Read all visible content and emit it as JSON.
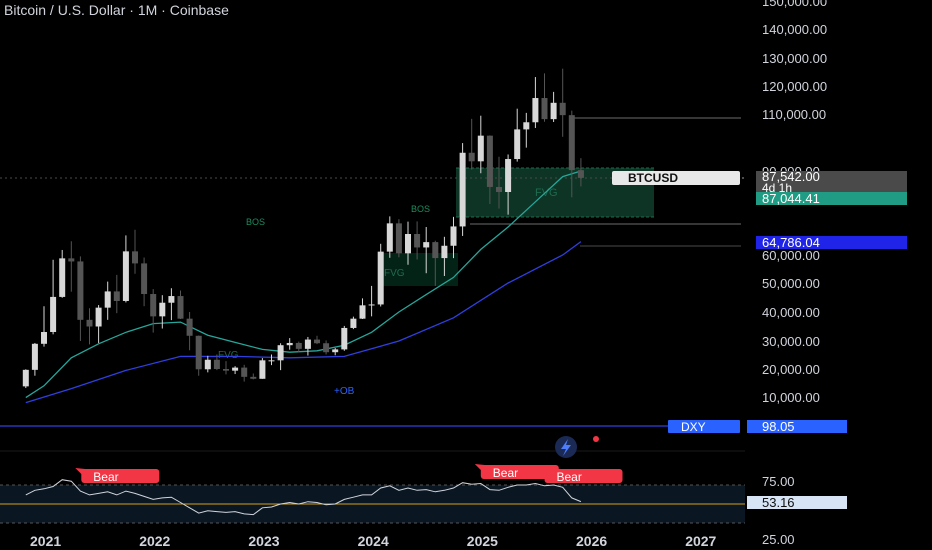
{
  "header": {
    "title": "Bitcoin / U.S. Dollar · 1M · Coinbase"
  },
  "annotations": {
    "bos_left": "BOS",
    "bos_right": "BOS",
    "fvg_left": "FVG",
    "fvg_right": "FVG",
    "fvg_2022": "FVG",
    "ob": "+OB"
  },
  "price_scale": {
    "ticks": [
      {
        "label": "150,000.00",
        "value": 150000
      },
      {
        "label": "140,000.00",
        "value": 140000
      },
      {
        "label": "130,000.00",
        "value": 130000
      },
      {
        "label": "120,000.00",
        "value": 120000
      },
      {
        "label": "110,000.00",
        "value": 110000
      },
      {
        "label": "90,000.00",
        "value": 90000
      },
      {
        "label": "60,000.00",
        "value": 60000
      },
      {
        "label": "50,000.00",
        "value": 50000
      },
      {
        "label": "40,000.00",
        "value": 40000
      },
      {
        "label": "30,000.00",
        "value": 30000
      },
      {
        "label": "20,000.00",
        "value": 20000
      },
      {
        "label": "10,000.00",
        "value": 10000
      }
    ],
    "current_symbol": "BTCUSD",
    "current_price": "87,542.00",
    "countdown": "4d 1h",
    "line_price_label": "87,044.41",
    "ma_price_label": "64,786.04",
    "dxy_symbol": "DXY",
    "dxy_value": "98.05"
  },
  "rsi_scale": {
    "ticks": [
      {
        "label": "75.00",
        "value": 75
      },
      {
        "label": "25.00",
        "value": 25
      }
    ],
    "current": "53.16",
    "bear_labels": [
      "Bear",
      "Bear",
      "Bear"
    ]
  },
  "time_axis": {
    "labels": [
      "2021",
      "2022",
      "2023",
      "2024",
      "2025",
      "2026",
      "2027"
    ]
  },
  "colors": {
    "background": "#000000",
    "bull_candle": "#d8d8d8",
    "bear_candle": "#555555",
    "ma_fast": "#26a69a",
    "ma_slow": "#2f3fe0",
    "fvg_box": "#0f3d2a",
    "price_label_green": "#1f9c83",
    "price_label_blue": "#1f24e8",
    "dxy_blue": "#2962ff",
    "bear_red": "#f23645",
    "rsi_line": "#d1d4dc",
    "rsi_mid": "#d4a017"
  },
  "chart_data": {
    "type": "candlestick",
    "title": "Bitcoin / U.S. Dollar · 1M · Coinbase",
    "interval": "1M",
    "price_axis": "right",
    "series": [
      {
        "name": "BTCUSD",
        "candles": [
          {
            "t": "2020-11",
            "o": 13800,
            "h": 19900,
            "l": 13200,
            "c": 19700
          },
          {
            "t": "2020-12",
            "o": 19700,
            "h": 29300,
            "l": 17600,
            "c": 29000
          },
          {
            "t": "2021-01",
            "o": 29000,
            "h": 42000,
            "l": 28000,
            "c": 33100
          },
          {
            "t": "2021-02",
            "o": 33100,
            "h": 58300,
            "l": 32300,
            "c": 45200
          },
          {
            "t": "2021-03",
            "o": 45200,
            "h": 61800,
            "l": 44900,
            "c": 58800
          },
          {
            "t": "2021-04",
            "o": 58800,
            "h": 64900,
            "l": 47000,
            "c": 57700
          },
          {
            "t": "2021-05",
            "o": 57700,
            "h": 59500,
            "l": 30000,
            "c": 37300
          },
          {
            "t": "2021-06",
            "o": 37300,
            "h": 41300,
            "l": 28800,
            "c": 35000
          },
          {
            "t": "2021-07",
            "o": 35000,
            "h": 42400,
            "l": 29300,
            "c": 41500
          },
          {
            "t": "2021-08",
            "o": 41500,
            "h": 50500,
            "l": 37300,
            "c": 47100
          },
          {
            "t": "2021-09",
            "o": 47100,
            "h": 52900,
            "l": 39600,
            "c": 43800
          },
          {
            "t": "2021-10",
            "o": 43800,
            "h": 67000,
            "l": 43300,
            "c": 61300
          },
          {
            "t": "2021-11",
            "o": 61300,
            "h": 69000,
            "l": 53300,
            "c": 57000
          },
          {
            "t": "2021-12",
            "o": 57000,
            "h": 59100,
            "l": 42000,
            "c": 46200
          },
          {
            "t": "2022-01",
            "o": 46200,
            "h": 47900,
            "l": 32900,
            "c": 38500
          },
          {
            "t": "2022-02",
            "o": 38500,
            "h": 45800,
            "l": 34300,
            "c": 43200
          },
          {
            "t": "2022-03",
            "o": 43200,
            "h": 48200,
            "l": 37200,
            "c": 45500
          },
          {
            "t": "2022-04",
            "o": 45500,
            "h": 47400,
            "l": 37600,
            "c": 37700
          },
          {
            "t": "2022-05",
            "o": 37700,
            "h": 40000,
            "l": 26700,
            "c": 31800
          },
          {
            "t": "2022-06",
            "o": 31800,
            "h": 31900,
            "l": 17600,
            "c": 19900
          },
          {
            "t": "2022-07",
            "o": 19900,
            "h": 24700,
            "l": 18800,
            "c": 23300
          },
          {
            "t": "2022-08",
            "o": 23300,
            "h": 25200,
            "l": 19600,
            "c": 20000
          },
          {
            "t": "2022-09",
            "o": 20000,
            "h": 22800,
            "l": 18100,
            "c": 19400
          },
          {
            "t": "2022-10",
            "o": 19400,
            "h": 21000,
            "l": 18200,
            "c": 20500
          },
          {
            "t": "2022-11",
            "o": 20500,
            "h": 21500,
            "l": 15500,
            "c": 17200
          },
          {
            "t": "2022-12",
            "o": 17200,
            "h": 18400,
            "l": 16300,
            "c": 16500
          },
          {
            "t": "2023-01",
            "o": 16500,
            "h": 23900,
            "l": 16500,
            "c": 23100
          },
          {
            "t": "2023-02",
            "o": 23100,
            "h": 25200,
            "l": 21400,
            "c": 23100
          },
          {
            "t": "2023-03",
            "o": 23100,
            "h": 29200,
            "l": 19600,
            "c": 28500
          },
          {
            "t": "2023-04",
            "o": 28500,
            "h": 31000,
            "l": 26900,
            "c": 29300
          },
          {
            "t": "2023-05",
            "o": 29300,
            "h": 29800,
            "l": 25900,
            "c": 27200
          },
          {
            "t": "2023-06",
            "o": 27200,
            "h": 31400,
            "l": 24800,
            "c": 30500
          },
          {
            "t": "2023-07",
            "o": 30500,
            "h": 31800,
            "l": 28900,
            "c": 29200
          },
          {
            "t": "2023-08",
            "o": 29200,
            "h": 30200,
            "l": 25200,
            "c": 26000
          },
          {
            "t": "2023-09",
            "o": 26000,
            "h": 27500,
            "l": 24900,
            "c": 27000
          },
          {
            "t": "2023-10",
            "o": 27000,
            "h": 35200,
            "l": 26500,
            "c": 34500
          },
          {
            "t": "2023-11",
            "o": 34500,
            "h": 38400,
            "l": 34100,
            "c": 37700
          },
          {
            "t": "2023-12",
            "o": 37700,
            "h": 44700,
            "l": 37600,
            "c": 42300
          },
          {
            "t": "2024-01",
            "o": 42300,
            "h": 49000,
            "l": 38500,
            "c": 42600
          },
          {
            "t": "2024-02",
            "o": 42600,
            "h": 64000,
            "l": 41900,
            "c": 61200
          },
          {
            "t": "2024-03",
            "o": 61200,
            "h": 73800,
            "l": 59000,
            "c": 71300
          },
          {
            "t": "2024-04",
            "o": 71300,
            "h": 72800,
            "l": 59200,
            "c": 60600
          },
          {
            "t": "2024-05",
            "o": 60600,
            "h": 71900,
            "l": 56500,
            "c": 67500
          },
          {
            "t": "2024-06",
            "o": 67500,
            "h": 72000,
            "l": 58400,
            "c": 62700
          },
          {
            "t": "2024-07",
            "o": 62700,
            "h": 70000,
            "l": 53500,
            "c": 64600
          },
          {
            "t": "2024-08",
            "o": 64600,
            "h": 65100,
            "l": 49000,
            "c": 58900
          },
          {
            "t": "2024-09",
            "o": 58900,
            "h": 66500,
            "l": 52500,
            "c": 63300
          },
          {
            "t": "2024-10",
            "o": 63300,
            "h": 73600,
            "l": 58900,
            "c": 70200
          },
          {
            "t": "2024-11",
            "o": 70200,
            "h": 99800,
            "l": 66800,
            "c": 96400
          },
          {
            "t": "2024-12",
            "o": 96400,
            "h": 108300,
            "l": 90500,
            "c": 93400
          },
          {
            "t": "2025-01",
            "o": 93400,
            "h": 109400,
            "l": 89200,
            "c": 102400
          },
          {
            "t": "2025-02",
            "o": 102400,
            "h": 102500,
            "l": 78200,
            "c": 84300
          },
          {
            "t": "2025-03",
            "o": 84300,
            "h": 95000,
            "l": 76600,
            "c": 82500
          },
          {
            "t": "2025-04",
            "o": 82500,
            "h": 95800,
            "l": 74400,
            "c": 94200
          },
          {
            "t": "2025-05",
            "o": 94200,
            "h": 111900,
            "l": 93300,
            "c": 104600
          },
          {
            "t": "2025-06",
            "o": 104600,
            "h": 110400,
            "l": 98200,
            "c": 107100
          },
          {
            "t": "2025-07",
            "o": 107100,
            "h": 123200,
            "l": 105100,
            "c": 115700
          },
          {
            "t": "2025-08",
            "o": 115700,
            "h": 124500,
            "l": 107300,
            "c": 108200
          },
          {
            "t": "2025-09",
            "o": 108200,
            "h": 117900,
            "l": 107200,
            "c": 114000
          },
          {
            "t": "2025-10",
            "o": 114000,
            "h": 126200,
            "l": 102000,
            "c": 109600
          },
          {
            "t": "2025-11",
            "o": 109600,
            "h": 111200,
            "l": 80600,
            "c": 90300
          },
          {
            "t": "2025-12",
            "o": 90300,
            "h": 94500,
            "l": 84500,
            "c": 87542
          }
        ]
      },
      {
        "name": "MA fast",
        "points": [
          [
            "2020-11",
            9800
          ],
          [
            "2021-01",
            14000
          ],
          [
            "2021-04",
            24000
          ],
          [
            "2021-07",
            29000
          ],
          [
            "2021-10",
            33000
          ],
          [
            "2022-01",
            36000
          ],
          [
            "2022-04",
            36500
          ],
          [
            "2022-07",
            32000
          ],
          [
            "2022-10",
            29500
          ],
          [
            "2023-01",
            27000
          ],
          [
            "2023-04",
            26000
          ],
          [
            "2023-07",
            26500
          ],
          [
            "2023-10",
            28500
          ],
          [
            "2024-01",
            33000
          ],
          [
            "2024-04",
            40000
          ],
          [
            "2024-07",
            46000
          ],
          [
            "2024-10",
            52000
          ],
          [
            "2025-01",
            62000
          ],
          [
            "2025-04",
            70000
          ],
          [
            "2025-07",
            79000
          ],
          [
            "2025-10",
            88000
          ],
          [
            "2025-12",
            90000
          ]
        ]
      },
      {
        "name": "MA slow",
        "points": [
          [
            "2020-11",
            8000
          ],
          [
            "2021-04",
            13000
          ],
          [
            "2021-10",
            19500
          ],
          [
            "2022-04",
            24500
          ],
          [
            "2022-10",
            24500
          ],
          [
            "2023-04",
            24000
          ],
          [
            "2023-10",
            24500
          ],
          [
            "2024-04",
            30000
          ],
          [
            "2024-10",
            38000
          ],
          [
            "2025-04",
            50000
          ],
          [
            "2025-10",
            60000
          ],
          [
            "2025-12",
            64786.04
          ]
        ]
      }
    ],
    "levels": [
      {
        "label": "87,044.41",
        "value": 87044.41
      },
      {
        "label": "64,786.04",
        "value": 64786.04
      }
    ],
    "rsi": {
      "ticks": [
        75,
        25
      ],
      "current": 53.16,
      "midline": 50,
      "points": [
        [
          "2020-11",
          62
        ],
        [
          "2020-12",
          68
        ],
        [
          "2021-01",
          70
        ],
        [
          "2021-02",
          73
        ],
        [
          "2021-03",
          82
        ],
        [
          "2021-04",
          80
        ],
        [
          "2021-05",
          67
        ],
        [
          "2021-06",
          62
        ],
        [
          "2021-07",
          64
        ],
        [
          "2021-08",
          66
        ],
        [
          "2021-09",
          62
        ],
        [
          "2021-10",
          67
        ],
        [
          "2021-11",
          64
        ],
        [
          "2021-12",
          60
        ],
        [
          "2022-01",
          56
        ],
        [
          "2022-02",
          58
        ],
        [
          "2022-03",
          59
        ],
        [
          "2022-04",
          52
        ],
        [
          "2022-05",
          45
        ],
        [
          "2022-06",
          38
        ],
        [
          "2022-07",
          41
        ],
        [
          "2022-08",
          40
        ],
        [
          "2022-09",
          39
        ],
        [
          "2022-10",
          40
        ],
        [
          "2022-11",
          37
        ],
        [
          "2022-12",
          36
        ],
        [
          "2023-01",
          45
        ],
        [
          "2023-02",
          46
        ],
        [
          "2023-03",
          50
        ],
        [
          "2023-04",
          52
        ],
        [
          "2023-05",
          50
        ],
        [
          "2023-06",
          53
        ],
        [
          "2023-07",
          52
        ],
        [
          "2023-08",
          49
        ],
        [
          "2023-09",
          50
        ],
        [
          "2023-10",
          56
        ],
        [
          "2023-11",
          59
        ],
        [
          "2023-12",
          62
        ],
        [
          "2024-01",
          62
        ],
        [
          "2024-02",
          71
        ],
        [
          "2024-03",
          74
        ],
        [
          "2024-04",
          68
        ],
        [
          "2024-05",
          71
        ],
        [
          "2024-06",
          68
        ],
        [
          "2024-07",
          69
        ],
        [
          "2024-08",
          66
        ],
        [
          "2024-09",
          68
        ],
        [
          "2024-10",
          71
        ],
        [
          "2024-11",
          78
        ],
        [
          "2024-12",
          76
        ],
        [
          "2025-01",
          77
        ],
        [
          "2025-02",
          69
        ],
        [
          "2025-03",
          68
        ],
        [
          "2025-04",
          72
        ],
        [
          "2025-05",
          75
        ],
        [
          "2025-06",
          75
        ],
        [
          "2025-07",
          77
        ],
        [
          "2025-08",
          74
        ],
        [
          "2025-09",
          75
        ],
        [
          "2025-10",
          72
        ],
        [
          "2025-11",
          58
        ],
        [
          "2025-12",
          53.16
        ]
      ],
      "signals": [
        {
          "label": "Bear",
          "t": "2021-04"
        },
        {
          "label": "Bear",
          "t": "2025-01"
        },
        {
          "label": "Bear",
          "t": "2025-08"
        }
      ]
    },
    "x_labels": [
      "2021",
      "2022",
      "2023",
      "2024",
      "2025",
      "2026",
      "2027"
    ]
  }
}
